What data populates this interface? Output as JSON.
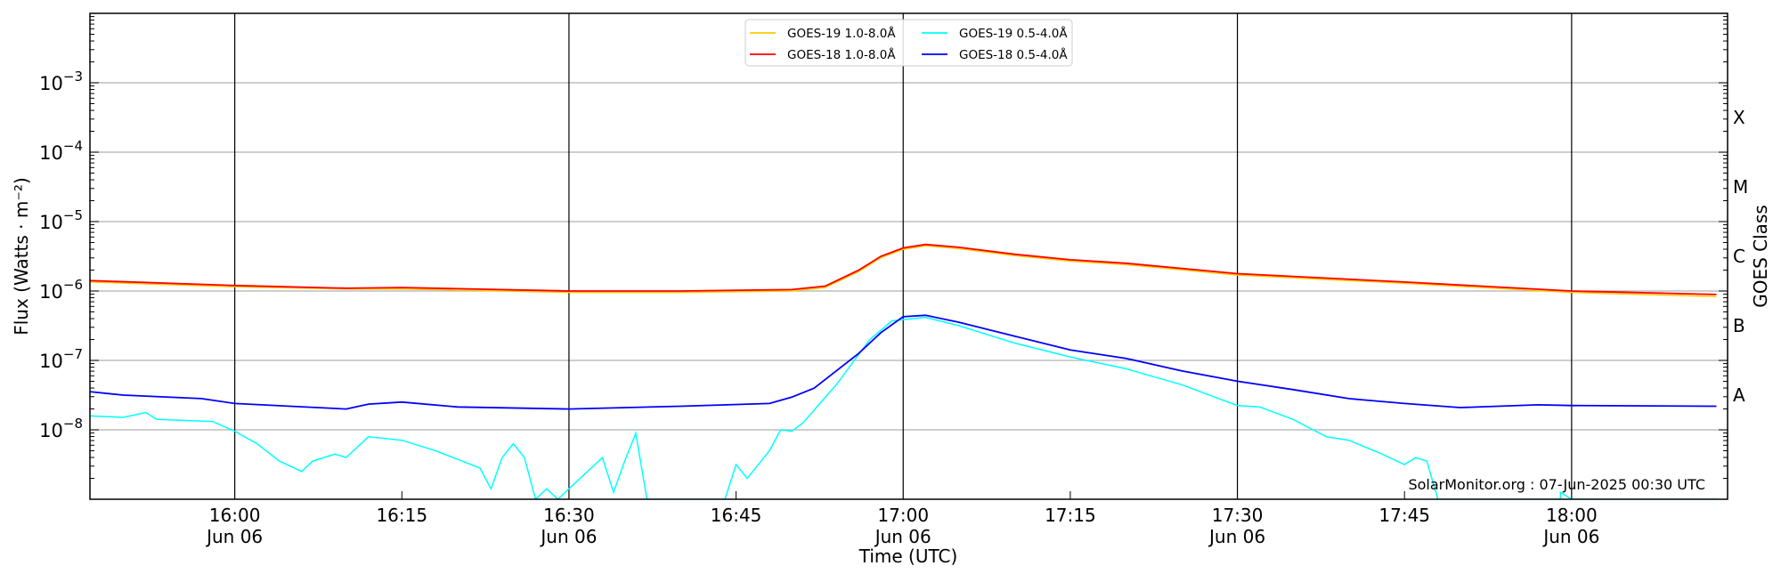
{
  "chart_data": {
    "type": "line",
    "title": "",
    "xlabel": "Time (UTC)",
    "ylabel": "Flux (Watts · m⁻²)",
    "y2label": "GOES Class",
    "yscale": "log",
    "ylim_log10": [
      -9,
      -2
    ],
    "xlim": [
      "15:47",
      "18:14"
    ],
    "grid": true,
    "legend_placement": "top-center",
    "yticks": [
      {
        "log10": -8,
        "base": "10",
        "exp": "−8"
      },
      {
        "log10": -7,
        "base": "10",
        "exp": "−7"
      },
      {
        "log10": -6,
        "base": "10",
        "exp": "−6"
      },
      {
        "log10": -5,
        "base": "10",
        "exp": "−5"
      },
      {
        "log10": -4,
        "base": "10",
        "exp": "−4"
      },
      {
        "log10": -3,
        "base": "10",
        "exp": "−3"
      }
    ],
    "goes_classes": [
      {
        "label": "A",
        "log10": -7.5
      },
      {
        "label": "B",
        "log10": -6.5
      },
      {
        "label": "C",
        "log10": -5.5
      },
      {
        "label": "M",
        "log10": -4.5
      },
      {
        "label": "X",
        "log10": -3.5
      }
    ],
    "xticks": [
      {
        "time": "16:00",
        "label": "16:00",
        "date": "Jun 06",
        "major": true
      },
      {
        "time": "16:15",
        "label": "16:15",
        "date": "",
        "major": false
      },
      {
        "time": "16:30",
        "label": "16:30",
        "date": "Jun 06",
        "major": true
      },
      {
        "time": "16:45",
        "label": "16:45",
        "date": "",
        "major": false
      },
      {
        "time": "17:00",
        "label": "17:00",
        "date": "Jun 06",
        "major": true
      },
      {
        "time": "17:15",
        "label": "17:15",
        "date": "",
        "major": false
      },
      {
        "time": "17:30",
        "label": "17:30",
        "date": "Jun 06",
        "major": true
      },
      {
        "time": "17:45",
        "label": "17:45",
        "date": "",
        "major": false
      },
      {
        "time": "18:00",
        "label": "18:00",
        "date": "Jun 06",
        "major": true
      }
    ],
    "series": [
      {
        "name": "GOES-19 1.0-8.0Å",
        "color": "#ffc800",
        "points": [
          [
            "15:47",
            -5.87
          ],
          [
            "16:00",
            -5.94
          ],
          [
            "16:10",
            -5.97
          ],
          [
            "16:15",
            -5.97
          ],
          [
            "16:30",
            -6.02
          ],
          [
            "16:40",
            -6.02
          ],
          [
            "16:50",
            -6.0
          ],
          [
            "16:53",
            -5.95
          ],
          [
            "16:56",
            -5.72
          ],
          [
            "16:58",
            -5.52
          ],
          [
            "17:00",
            -5.4
          ],
          [
            "17:02",
            -5.35
          ],
          [
            "17:05",
            -5.39
          ],
          [
            "17:10",
            -5.49
          ],
          [
            "17:15",
            -5.57
          ],
          [
            "17:20",
            -5.62
          ],
          [
            "17:30",
            -5.77
          ],
          [
            "17:45",
            -5.89
          ],
          [
            "18:00",
            -6.02
          ],
          [
            "18:13",
            -6.08
          ]
        ]
      },
      {
        "name": "GOES-18 1.0-8.0Å",
        "color": "#ff0000",
        "points": [
          [
            "15:47",
            -5.85
          ],
          [
            "16:00",
            -5.92
          ],
          [
            "16:10",
            -5.96
          ],
          [
            "16:15",
            -5.95
          ],
          [
            "16:30",
            -6.0
          ],
          [
            "16:40",
            -6.0
          ],
          [
            "16:50",
            -5.98
          ],
          [
            "16:53",
            -5.93
          ],
          [
            "16:56",
            -5.7
          ],
          [
            "16:58",
            -5.5
          ],
          [
            "17:00",
            -5.38
          ],
          [
            "17:02",
            -5.33
          ],
          [
            "17:05",
            -5.37
          ],
          [
            "17:10",
            -5.47
          ],
          [
            "17:15",
            -5.55
          ],
          [
            "17:20",
            -5.6
          ],
          [
            "17:30",
            -5.75
          ],
          [
            "17:45",
            -5.87
          ],
          [
            "18:00",
            -6.0
          ],
          [
            "18:13",
            -6.05
          ]
        ]
      },
      {
        "name": "GOES-19 0.5-4.0Å",
        "color": "#00ffff",
        "points": [
          [
            "15:47",
            -7.8
          ],
          [
            "15:50",
            -7.82
          ],
          [
            "15:52",
            -7.75
          ],
          [
            "15:53",
            -7.85
          ],
          [
            "15:58",
            -7.88
          ],
          [
            "16:00",
            -8.02
          ],
          [
            "16:02",
            -8.2
          ],
          [
            "16:04",
            -8.45
          ],
          [
            "16:06",
            -8.6
          ],
          [
            "16:07",
            -8.45
          ],
          [
            "16:09",
            -8.35
          ],
          [
            "16:10",
            -8.4
          ],
          [
            "16:12",
            -8.1
          ],
          [
            "16:15",
            -8.15
          ],
          [
            "16:18",
            -8.3
          ],
          [
            "16:22",
            -8.55
          ],
          [
            "16:23",
            -8.85
          ],
          [
            "16:24",
            -8.4
          ],
          [
            "16:25",
            -8.2
          ],
          [
            "16:26",
            -8.4
          ],
          [
            "16:27",
            -9.0
          ],
          [
            "16:28",
            -8.85
          ],
          [
            "16:29",
            -9.0
          ],
          [
            "16:31",
            -8.7
          ],
          [
            "16:33",
            -8.4
          ],
          [
            "16:34",
            -8.9
          ],
          [
            "16:35",
            -8.45
          ],
          [
            "16:36",
            -8.05
          ],
          [
            "16:37",
            -9.0
          ],
          [
            "16:44",
            -9.0
          ],
          [
            "16:45",
            -8.5
          ],
          [
            "16:46",
            -8.7
          ],
          [
            "16:48",
            -8.3
          ],
          [
            "16:49",
            -8.0
          ],
          [
            "16:50",
            -8.02
          ],
          [
            "16:51",
            -7.9
          ],
          [
            "16:54",
            -7.35
          ],
          [
            "16:57",
            -6.7
          ],
          [
            "16:59",
            -6.43
          ],
          [
            "17:02",
            -6.38
          ],
          [
            "17:05",
            -6.5
          ],
          [
            "17:10",
            -6.75
          ],
          [
            "17:15",
            -6.95
          ],
          [
            "17:20",
            -7.12
          ],
          [
            "17:25",
            -7.35
          ],
          [
            "17:30",
            -7.65
          ],
          [
            "17:32",
            -7.67
          ],
          [
            "17:35",
            -7.85
          ],
          [
            "17:38",
            -8.1
          ],
          [
            "17:40",
            -8.15
          ],
          [
            "17:43",
            -8.35
          ],
          [
            "17:45",
            -8.5
          ],
          [
            "17:46",
            -8.4
          ],
          [
            "17:47",
            -8.45
          ],
          [
            "17:48",
            -9.0
          ],
          [
            "17:59",
            -9.0
          ],
          [
            "17:59",
            -8.9
          ],
          [
            "18:00",
            -9.0
          ],
          [
            "18:13",
            -9.0
          ]
        ]
      },
      {
        "name": "GOES-18 0.5-4.0Å",
        "color": "#0000ff",
        "points": [
          [
            "15:47",
            -7.45
          ],
          [
            "15:50",
            -7.5
          ],
          [
            "15:57",
            -7.55
          ],
          [
            "16:00",
            -7.62
          ],
          [
            "16:05",
            -7.66
          ],
          [
            "16:10",
            -7.7
          ],
          [
            "16:12",
            -7.63
          ],
          [
            "16:15",
            -7.6
          ],
          [
            "16:20",
            -7.67
          ],
          [
            "16:30",
            -7.7
          ],
          [
            "16:40",
            -7.66
          ],
          [
            "16:48",
            -7.62
          ],
          [
            "16:50",
            -7.53
          ],
          [
            "16:52",
            -7.4
          ],
          [
            "16:54",
            -7.15
          ],
          [
            "16:56",
            -6.9
          ],
          [
            "16:58",
            -6.6
          ],
          [
            "17:00",
            -6.37
          ],
          [
            "17:02",
            -6.35
          ],
          [
            "17:05",
            -6.45
          ],
          [
            "17:10",
            -6.65
          ],
          [
            "17:15",
            -6.85
          ],
          [
            "17:20",
            -6.97
          ],
          [
            "17:25",
            -7.15
          ],
          [
            "17:30",
            -7.3
          ],
          [
            "17:35",
            -7.42
          ],
          [
            "17:40",
            -7.55
          ],
          [
            "17:45",
            -7.62
          ],
          [
            "17:50",
            -7.68
          ],
          [
            "17:57",
            -7.64
          ],
          [
            "18:00",
            -7.65
          ],
          [
            "18:13",
            -7.66
          ]
        ]
      }
    ],
    "annotation": "SolarMonitor.org : 07-Jun-2025 00:30 UTC"
  }
}
